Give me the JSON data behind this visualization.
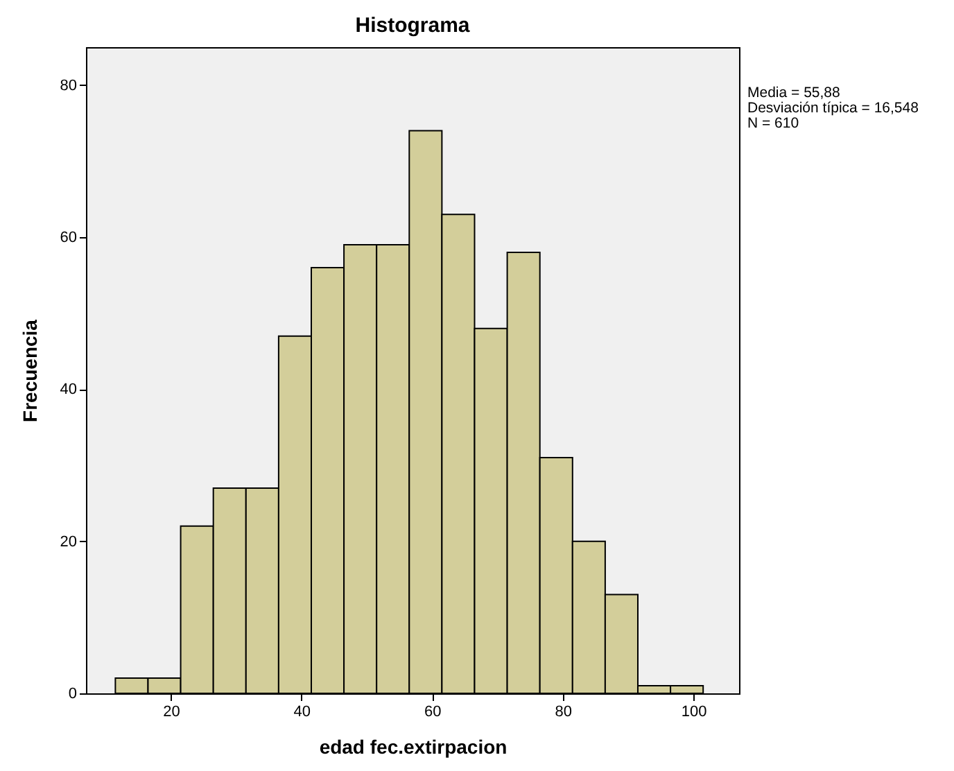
{
  "chart_data": {
    "type": "histogram",
    "title": "Histograma",
    "xlabel": "edad fec.extirpacion",
    "ylabel": "Frecuencia",
    "bins": [
      11.5,
      16.5,
      21.5,
      26.5,
      31.5,
      36.5,
      41.5,
      46.5,
      51.5,
      56.5,
      61.5,
      66.5,
      71.5,
      76.5,
      81.5,
      86.5,
      91.5,
      96.5,
      101.5
    ],
    "values": [
      2,
      2,
      22,
      27,
      27,
      47,
      56,
      59,
      59,
      74,
      63,
      48,
      58,
      31,
      20,
      13,
      1,
      1
    ],
    "color": "#d3ce9a",
    "xlim": [
      7,
      107
    ],
    "ylim": [
      0,
      85
    ],
    "xticks": [
      20,
      40,
      60,
      80,
      100
    ],
    "yticks": [
      0,
      20,
      40,
      60,
      80
    ],
    "annotations": [
      "Media = 55,88",
      "Desviación típica = 16,548",
      "N = 610"
    ],
    "grid": false
  }
}
